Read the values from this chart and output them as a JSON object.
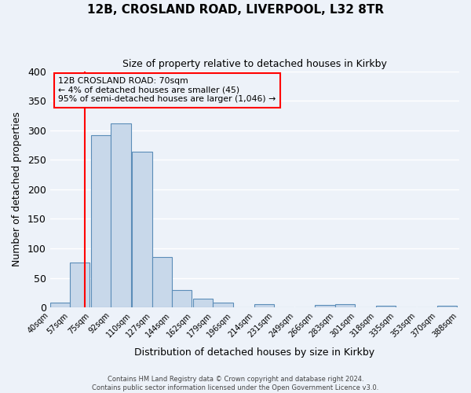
{
  "title": "12B, CROSLAND ROAD, LIVERPOOL, L32 8TR",
  "subtitle": "Size of property relative to detached houses in Kirkby",
  "xlabel": "Distribution of detached houses by size in Kirkby",
  "ylabel": "Number of detached properties",
  "bar_left_edges": [
    40,
    57,
    75,
    92,
    110,
    127,
    144,
    162,
    179,
    196,
    214,
    231,
    249,
    266,
    283,
    301,
    318,
    335,
    353,
    370
  ],
  "bar_heights": [
    8,
    76,
    291,
    312,
    263,
    85,
    29,
    15,
    8,
    0,
    6,
    0,
    0,
    4,
    5,
    0,
    3,
    0,
    0,
    3
  ],
  "bin_width": 17,
  "x_tick_labels": [
    "40sqm",
    "57sqm",
    "75sqm",
    "92sqm",
    "110sqm",
    "127sqm",
    "144sqm",
    "162sqm",
    "179sqm",
    "196sqm",
    "214sqm",
    "231sqm",
    "249sqm",
    "266sqm",
    "283sqm",
    "301sqm",
    "318sqm",
    "335sqm",
    "353sqm",
    "370sqm",
    "388sqm"
  ],
  "x_tick_positions": [
    40,
    57,
    75,
    92,
    110,
    127,
    144,
    162,
    179,
    196,
    214,
    231,
    249,
    266,
    283,
    301,
    318,
    335,
    353,
    370,
    388
  ],
  "ylim": [
    0,
    400
  ],
  "yticks": [
    0,
    50,
    100,
    150,
    200,
    250,
    300,
    350,
    400
  ],
  "bar_fill_color": "#c8d8ea",
  "bar_edge_color": "#5b8db8",
  "vline_x": 70,
  "vline_color": "red",
  "annotation_title": "12B CROSLAND ROAD: 70sqm",
  "annotation_line2": "← 4% of detached houses are smaller (45)",
  "annotation_line3": "95% of semi-detached houses are larger (1,046) →",
  "annotation_box_edge_color": "red",
  "footer_line1": "Contains HM Land Registry data © Crown copyright and database right 2024.",
  "footer_line2": "Contains public sector information licensed under the Open Government Licence v3.0.",
  "background_color": "#edf2f9",
  "grid_color": "#ffffff"
}
